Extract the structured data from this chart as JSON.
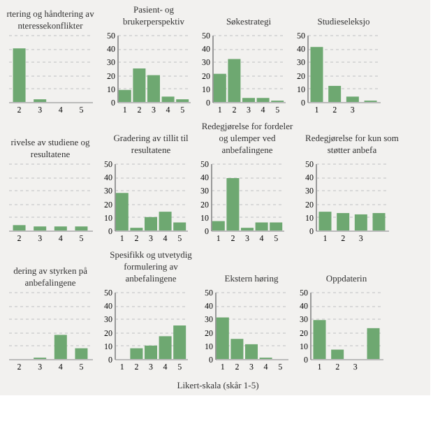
{
  "chart_data": [
    {
      "type": "bar",
      "title": "rtering og håndtering av nteressekonflikter",
      "categories": [
        "2",
        "3",
        "4",
        "5"
      ],
      "values": [
        40,
        2,
        0,
        0
      ],
      "color": "#6ea871",
      "ylim": [
        0,
        50
      ],
      "yticks": [
        0,
        10,
        20,
        30,
        40,
        50
      ],
      "grid": "y",
      "tick_labels": "x"
    },
    {
      "type": "bar",
      "title": "Pasient- og brukerperspektiv",
      "categories": [
        "1",
        "2",
        "3",
        "4",
        "5"
      ],
      "values": [
        9,
        25,
        20,
        4,
        2
      ],
      "color": "#6ea871",
      "ylim": [
        0,
        50
      ],
      "yticks": [
        0,
        10,
        20,
        30,
        40,
        50
      ],
      "grid": "y"
    },
    {
      "type": "bar",
      "title": "Søkestrategi",
      "categories": [
        "1",
        "2",
        "3",
        "4",
        "5"
      ],
      "values": [
        21,
        32,
        3,
        3,
        1
      ],
      "color": "#6ea871",
      "ylim": [
        0,
        50
      ],
      "yticks": [
        0,
        10,
        20,
        30,
        40,
        50
      ],
      "grid": "y"
    },
    {
      "type": "bar",
      "title": "Studieseleksjo",
      "categories": [
        "1",
        "2",
        "3",
        null
      ],
      "values": [
        41,
        12,
        4,
        1
      ],
      "color": "#6ea871",
      "ylim": [
        0,
        50
      ],
      "yticks": [
        0,
        10,
        20,
        30,
        40,
        50
      ],
      "grid": "y"
    },
    {
      "type": "bar",
      "title": "rivelse av studiene og resultatene",
      "categories": [
        "2",
        "3",
        "4",
        "5"
      ],
      "values": [
        4,
        3,
        3,
        3
      ],
      "color": "#6ea871",
      "ylim": [
        0,
        50
      ],
      "yticks": [
        0,
        10,
        20,
        30,
        40,
        50
      ],
      "grid": "y",
      "tick_labels": "x"
    },
    {
      "type": "bar",
      "title": "Gradering av tillit til resultatene",
      "categories": [
        "1",
        "2",
        "3",
        "4",
        "5"
      ],
      "values": [
        28,
        2,
        10,
        14,
        6
      ],
      "color": "#6ea871",
      "ylim": [
        0,
        50
      ],
      "yticks": [
        0,
        10,
        20,
        30,
        40,
        50
      ],
      "grid": "y"
    },
    {
      "type": "bar",
      "title": "Redegjørelse for fordeler og ulemper ved anbefalingene",
      "categories": [
        "1",
        "2",
        "3",
        "4",
        "5"
      ],
      "values": [
        7,
        39,
        2,
        6,
        6
      ],
      "color": "#6ea871",
      "ylim": [
        0,
        50
      ],
      "yticks": [
        0,
        10,
        20,
        30,
        40,
        50
      ],
      "grid": "y"
    },
    {
      "type": "bar",
      "title": "Redegjørelse for kun som støtter anbefa",
      "categories": [
        "1",
        "2",
        "3",
        null
      ],
      "values": [
        14,
        13,
        12,
        13
      ],
      "color": "#6ea871",
      "ylim": [
        0,
        50
      ],
      "yticks": [
        0,
        10,
        20,
        30,
        40,
        50
      ],
      "grid": "y"
    },
    {
      "type": "bar",
      "title": "dering av styrken på anbefalingene",
      "categories": [
        "2",
        "3",
        "4",
        "5"
      ],
      "values": [
        0,
        1,
        18,
        8
      ],
      "color": "#6ea871",
      "ylim": [
        0,
        50
      ],
      "yticks": [
        0,
        10,
        20,
        30,
        40,
        50
      ],
      "grid": "y",
      "tick_labels": "x"
    },
    {
      "type": "bar",
      "title": "Spesifikk og utvetydig formulering av anbefalingene",
      "categories": [
        "1",
        "2",
        "3",
        "4",
        "5"
      ],
      "values": [
        0,
        8,
        10,
        17,
        25
      ],
      "color": "#6ea871",
      "ylim": [
        0,
        50
      ],
      "yticks": [
        0,
        10,
        20,
        30,
        40,
        50
      ],
      "grid": "y",
      "annotations": [
        "Likert-skala (skår 1-5)"
      ]
    },
    {
      "type": "bar",
      "title": "Ekstern høring",
      "categories": [
        "1",
        "2",
        "3",
        "4",
        "5"
      ],
      "values": [
        31,
        15,
        11,
        1,
        0
      ],
      "color": "#6ea871",
      "ylim": [
        0,
        50
      ],
      "yticks": [
        0,
        10,
        20,
        30,
        40,
        50
      ],
      "grid": "y"
    },
    {
      "type": "bar",
      "title": "Oppdaterin",
      "categories": [
        "1",
        "2",
        "3",
        null
      ],
      "values": [
        29,
        7,
        0,
        23
      ],
      "color": "#6ea871",
      "ylim": [
        0,
        50
      ],
      "yticks": [
        0,
        10,
        20,
        30,
        40,
        50
      ],
      "grid": "y"
    }
  ]
}
